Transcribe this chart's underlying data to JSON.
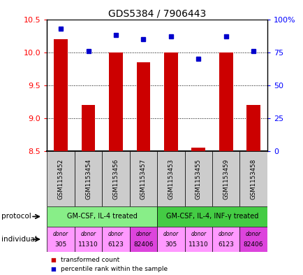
{
  "title": "GDS5384 / 7906443",
  "samples": [
    "GSM1153452",
    "GSM1153454",
    "GSM1153456",
    "GSM1153457",
    "GSM1153453",
    "GSM1153455",
    "GSM1153459",
    "GSM1153458"
  ],
  "transformed_counts": [
    10.2,
    9.2,
    10.0,
    9.85,
    10.0,
    8.55,
    10.0,
    9.2
  ],
  "percentile_ranks": [
    93,
    76,
    88,
    85,
    87,
    70,
    87,
    76
  ],
  "ylim_left": [
    8.5,
    10.5
  ],
  "ylim_right": [
    0,
    100
  ],
  "yticks_left": [
    8.5,
    9.0,
    9.5,
    10.0,
    10.5
  ],
  "yticks_right": [
    0,
    25,
    50,
    75,
    100
  ],
  "ytick_labels_right": [
    "0",
    "25",
    "50",
    "75",
    "100%"
  ],
  "bar_color": "#cc0000",
  "dot_color": "#0000cc",
  "bar_bottom": 8.5,
  "individuals": [
    "305",
    "11310",
    "6123",
    "82406",
    "305",
    "11310",
    "6123",
    "82406"
  ],
  "individual_colors": [
    "#ff99ff",
    "#ff99ff",
    "#ff99ff",
    "#dd44dd",
    "#ff99ff",
    "#ff99ff",
    "#ff99ff",
    "#dd44dd"
  ],
  "grid_color": "#000000",
  "sample_bg_color": "#cccccc",
  "proto1_label": "GM-CSF, IL-4 treated",
  "proto1_color": "#88ee88",
  "proto2_label": "GM-CSF, IL-4, INF-γ treated",
  "proto2_color": "#44cc44",
  "legend_red_label": "transformed count",
  "legend_blue_label": "percentile rank within the sample"
}
